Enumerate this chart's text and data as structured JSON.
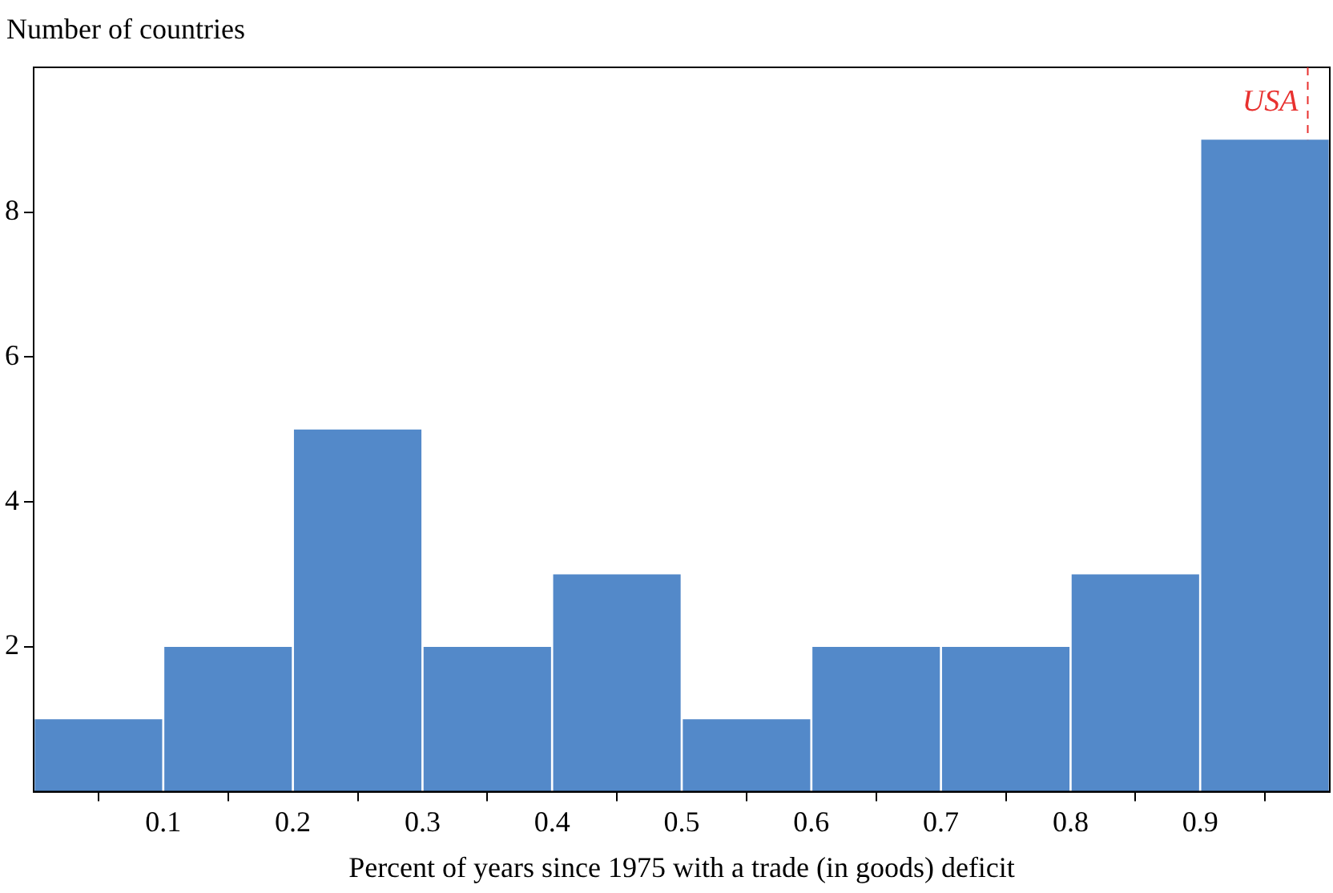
{
  "chart_data": {
    "type": "histogram",
    "ylabel": "Number of countries",
    "xlabel": "Percent of years since 1975 with a trade (in goods) deficit",
    "bins": [
      0,
      0.1,
      0.2,
      0.3,
      0.4,
      0.5,
      0.6,
      0.7,
      0.8,
      0.9,
      1.0
    ],
    "values": [
      1,
      2,
      5,
      2,
      3,
      1,
      2,
      2,
      3,
      9
    ],
    "color": "#5389c9",
    "xlim": [
      0,
      1.0
    ],
    "xticks": [
      0.1,
      0.2,
      0.3,
      0.4,
      0.5,
      0.6,
      0.7,
      0.8,
      0.9
    ],
    "ylim": [
      0,
      10
    ],
    "yticks": [
      2,
      4,
      6,
      8
    ],
    "grid": false,
    "legend": false,
    "ref_lines": [
      {
        "axis": "x",
        "value": 0.983,
        "label": "USA",
        "color": "#e8312f",
        "line_style": "dashed"
      }
    ]
  }
}
